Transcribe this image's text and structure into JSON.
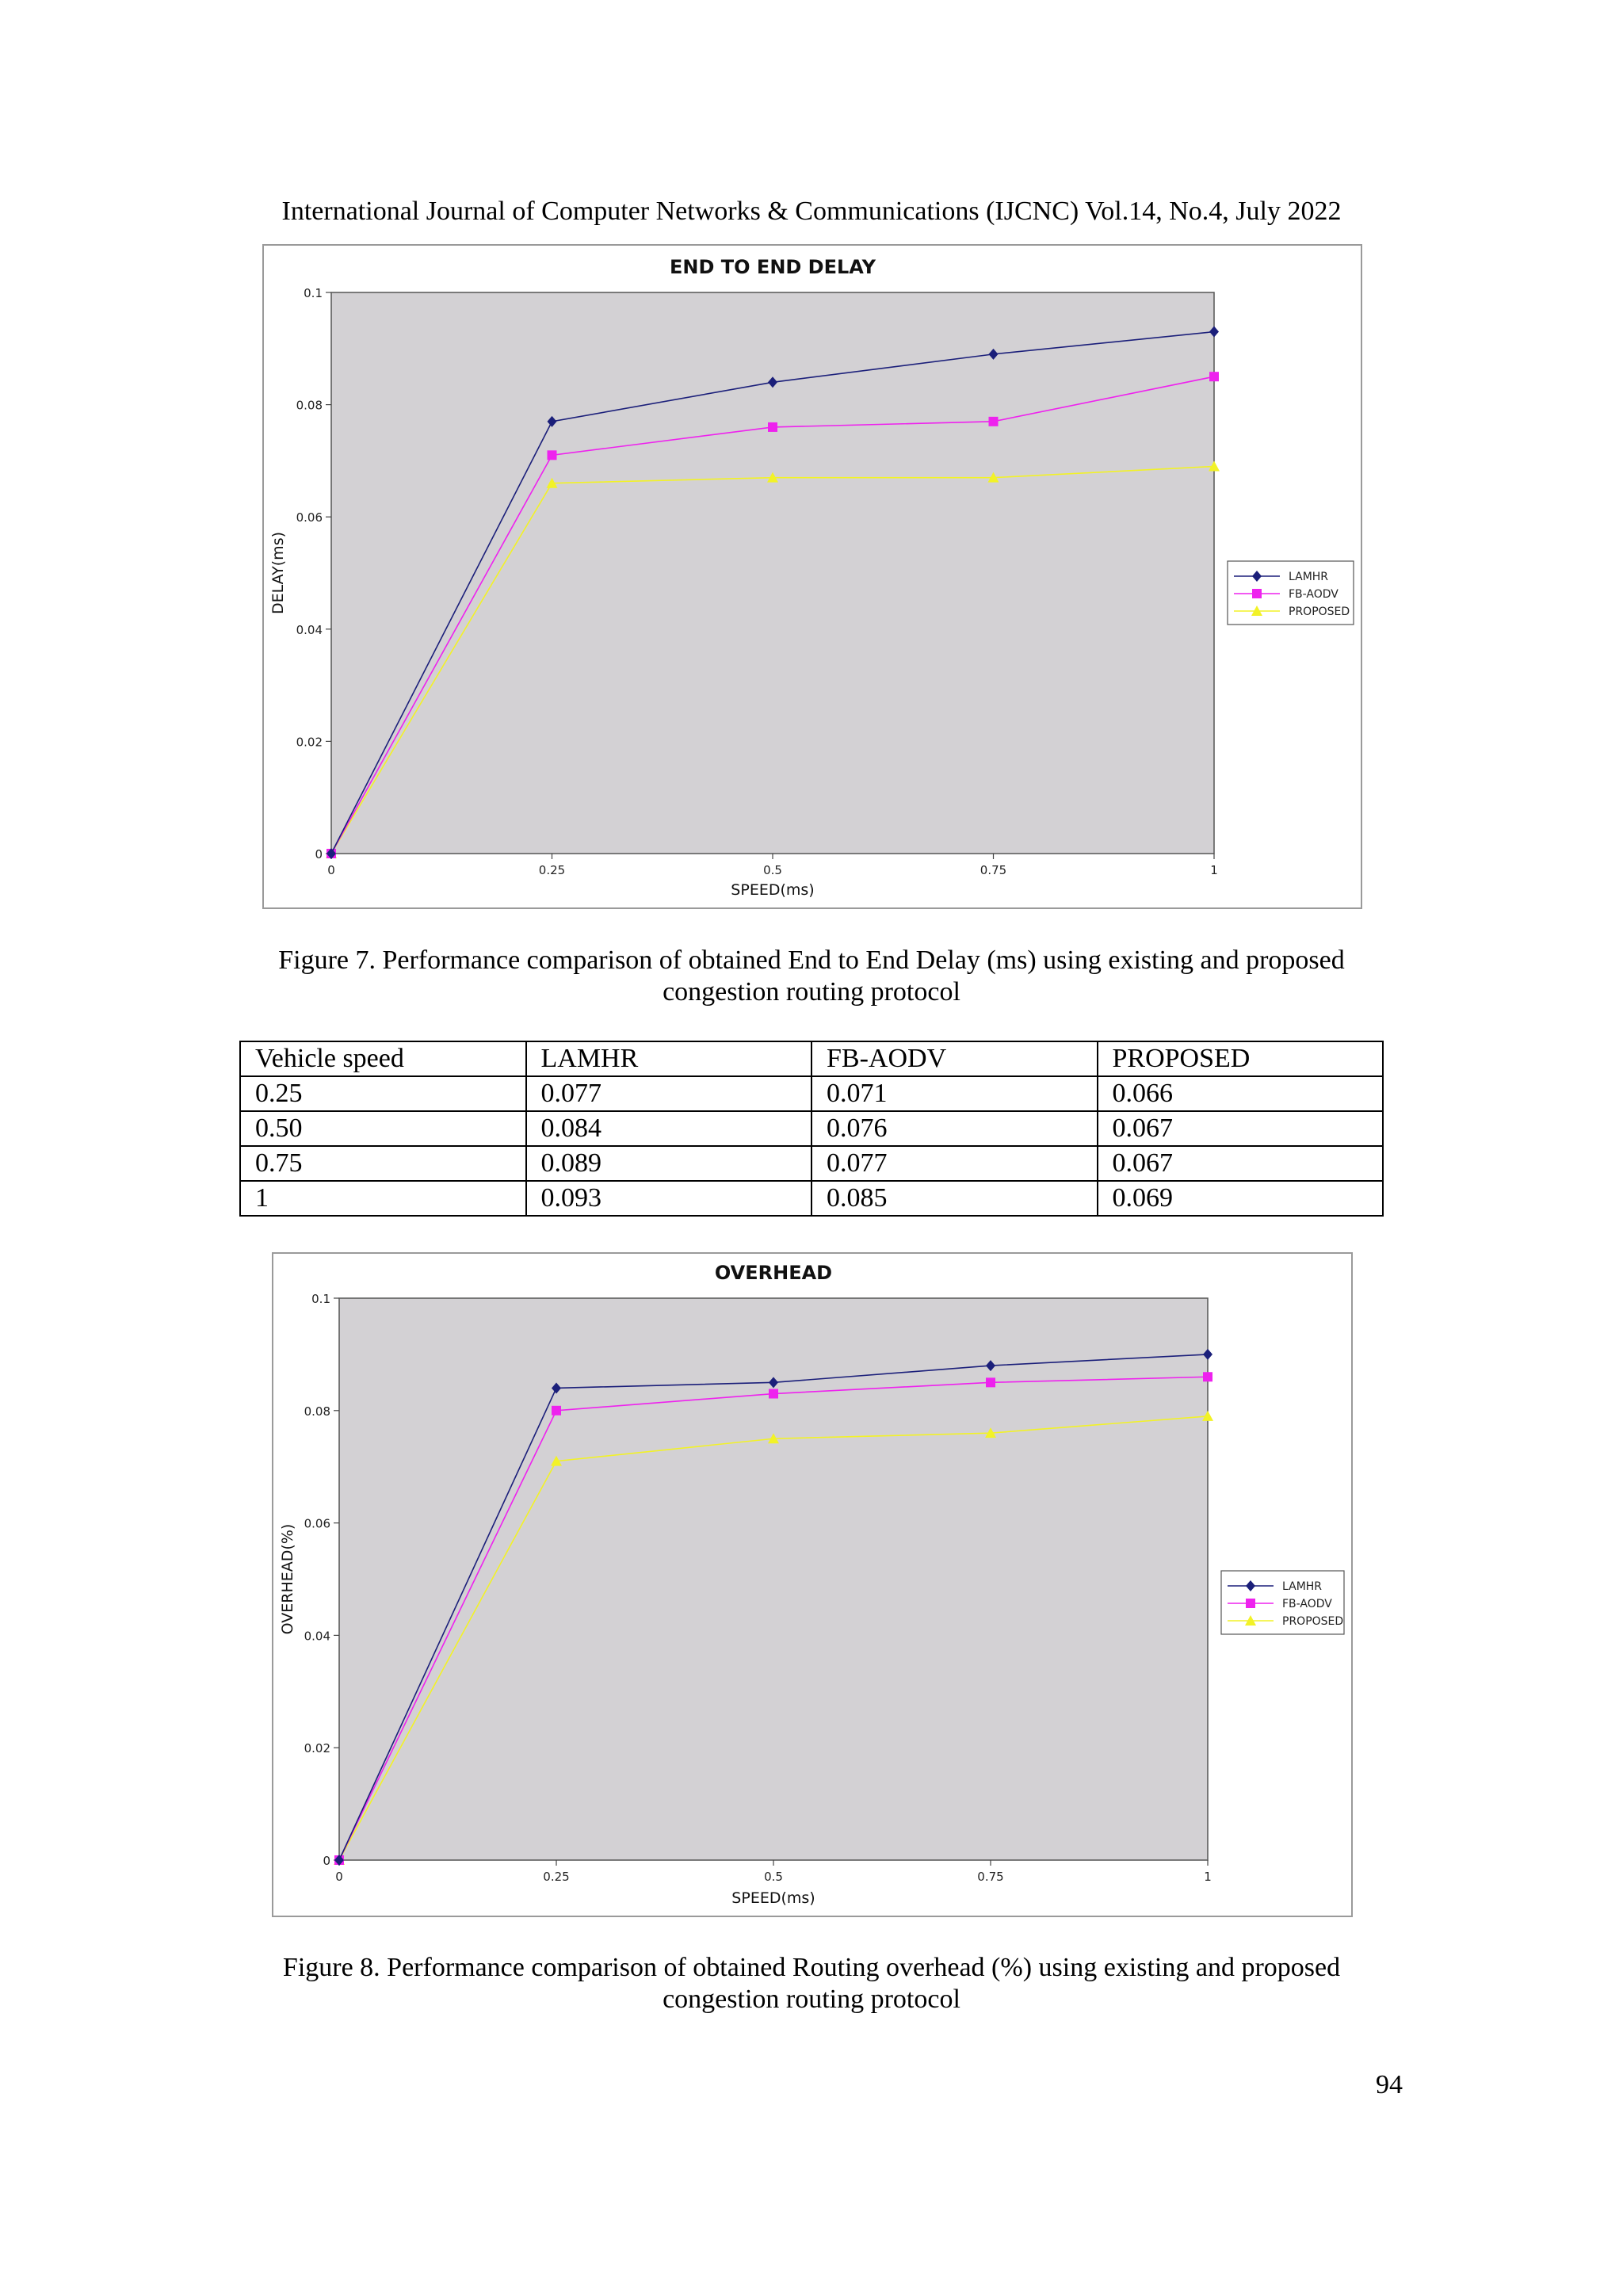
{
  "header": "International Journal of Computer Networks & Communications (IJCNC) Vol.14, No.4, July 2022",
  "figure7": {
    "caption_line1": "Figure 7. Performance comparison of obtained End to End Delay (ms) using existing and proposed",
    "caption_line2": "congestion routing protocol"
  },
  "figure8": {
    "caption_line1": "Figure 8. Performance comparison of obtained Routing overhead (%) using existing and proposed",
    "caption_line2": "congestion routing protocol"
  },
  "table": {
    "header": [
      "Vehicle speed",
      "LAMHR",
      "FB-AODV",
      "PROPOSED"
    ],
    "rows": [
      [
        "0.25",
        "0.077",
        "0.071",
        "0.066"
      ],
      [
        "0.50",
        "0.084",
        "0.076",
        "0.067"
      ],
      [
        "0.75",
        "0.089",
        "0.077",
        "0.067"
      ],
      [
        "1",
        "0.093",
        "0.085",
        "0.069"
      ]
    ]
  },
  "page_number": "94",
  "colors": {
    "plot_bg": "#d3d1d4",
    "LAMHR": "#1b1f7a",
    "FB-AODV": "#ee22ee",
    "PROPOSED": "#f2f227"
  },
  "chart_data": [
    {
      "type": "line",
      "title": "END TO END DELAY",
      "xlabel": "SPEED(ms)",
      "ylabel": "DELAY(ms)",
      "x": [
        0,
        0.25,
        0.5,
        0.75,
        1
      ],
      "xticks": [
        "0",
        "0.25",
        "0.5",
        "0.75",
        "1"
      ],
      "yticks": [
        "0",
        "0.02",
        "0.04",
        "0.06",
        "0.08",
        "0.1"
      ],
      "xlim": [
        0,
        1
      ],
      "ylim": [
        0,
        0.1
      ],
      "grid": false,
      "legend_position": "right",
      "series": [
        {
          "name": "LAMHR",
          "marker": "diamond",
          "color": "#1b1f7a",
          "values": [
            0,
            0.077,
            0.084,
            0.089,
            0.093
          ]
        },
        {
          "name": "FB-AODV",
          "marker": "square",
          "color": "#ee22ee",
          "values": [
            0,
            0.071,
            0.076,
            0.077,
            0.085
          ]
        },
        {
          "name": "PROPOSED",
          "marker": "triangle",
          "color": "#f2f227",
          "values": [
            0,
            0.066,
            0.067,
            0.067,
            0.069
          ]
        }
      ]
    },
    {
      "type": "line",
      "title": "OVERHEAD",
      "xlabel": "SPEED(ms)",
      "ylabel": "OVERHEAD(%)",
      "x": [
        0,
        0.25,
        0.5,
        0.75,
        1
      ],
      "xticks": [
        "0",
        "0.25",
        "0.5",
        "0.75",
        "1"
      ],
      "yticks": [
        "0",
        "0.02",
        "0.04",
        "0.06",
        "0.08",
        "0.1"
      ],
      "xlim": [
        0,
        1
      ],
      "ylim": [
        0,
        0.1
      ],
      "grid": false,
      "legend_position": "right",
      "series": [
        {
          "name": "LAMHR",
          "marker": "diamond",
          "color": "#1b1f7a",
          "values": [
            0,
            0.084,
            0.085,
            0.088,
            0.09
          ]
        },
        {
          "name": "FB-AODV",
          "marker": "square",
          "color": "#ee22ee",
          "values": [
            0,
            0.08,
            0.083,
            0.085,
            0.086
          ]
        },
        {
          "name": "PROPOSED",
          "marker": "triangle",
          "color": "#f2f227",
          "values": [
            0,
            0.071,
            0.075,
            0.076,
            0.079
          ]
        }
      ]
    }
  ]
}
